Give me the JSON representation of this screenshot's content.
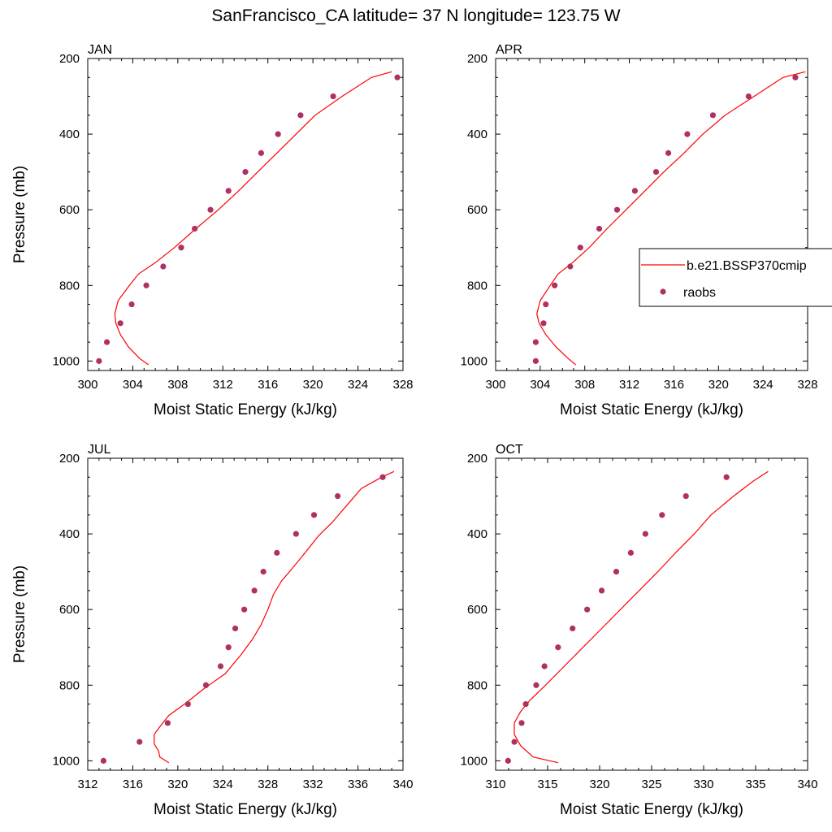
{
  "title": "SanFrancisco_CA  latitude= 37 N longitude= 123.75 W",
  "legend": {
    "line_label": "b.e21.BSSP370cmip",
    "dot_label": "raobs"
  },
  "colors": {
    "model": "#ff0000",
    "obs": "#b03060",
    "frame": "#000000"
  },
  "chart_data": [
    {
      "type": "line",
      "title": "JAN",
      "xlabel": "Moist Static Energy (kJ/kg)",
      "ylabel": "Pressure (mb)",
      "xlim": [
        300,
        328
      ],
      "ylim": [
        1025,
        200
      ],
      "xticks": [
        300,
        304,
        308,
        312,
        316,
        320,
        324,
        328
      ],
      "yticks": [
        200,
        400,
        600,
        800,
        1000
      ],
      "series": [
        {
          "name": "b.e21.BSSP370cmip",
          "kind": "line",
          "points": [
            [
              305.4,
              1010
            ],
            [
              304.6,
              993
            ],
            [
              303.6,
              962
            ],
            [
              302.9,
              930
            ],
            [
              302.5,
              900
            ],
            [
              302.4,
              875
            ],
            [
              302.7,
              840
            ],
            [
              303.7,
              800
            ],
            [
              304.5,
              770
            ],
            [
              306.0,
              740
            ],
            [
              307.7,
              700
            ],
            [
              309.6,
              650
            ],
            [
              311.6,
              600
            ],
            [
              313.4,
              550
            ],
            [
              315.1,
              500
            ],
            [
              316.8,
              450
            ],
            [
              318.5,
              400
            ],
            [
              320.2,
              350
            ],
            [
              322.6,
              300
            ],
            [
              325.2,
              250
            ],
            [
              327.0,
              235
            ]
          ]
        },
        {
          "name": "raobs",
          "kind": "scatter",
          "points": [
            [
              301.0,
              1000
            ],
            [
              301.7,
              950
            ],
            [
              302.9,
              900
            ],
            [
              303.9,
              850
            ],
            [
              305.2,
              800
            ],
            [
              306.7,
              750
            ],
            [
              308.3,
              700
            ],
            [
              309.5,
              650
            ],
            [
              310.9,
              600
            ],
            [
              312.5,
              550
            ],
            [
              314.0,
              500
            ],
            [
              315.4,
              450
            ],
            [
              316.9,
              400
            ],
            [
              318.9,
              350
            ],
            [
              321.8,
              300
            ],
            [
              327.5,
              250
            ]
          ]
        }
      ]
    },
    {
      "type": "line",
      "title": "APR",
      "xlabel": "Moist Static Energy (kJ/kg)",
      "ylabel": "",
      "xlim": [
        300,
        328
      ],
      "ylim": [
        1025,
        200
      ],
      "xticks": [
        300,
        304,
        308,
        312,
        316,
        320,
        324,
        328
      ],
      "yticks": [
        200,
        400,
        600,
        800,
        1000
      ],
      "series": [
        {
          "name": "b.e21.BSSP370cmip",
          "kind": "line",
          "points": [
            [
              307.2,
              1010
            ],
            [
              306.5,
              993
            ],
            [
              305.4,
              962
            ],
            [
              304.5,
              930
            ],
            [
              303.9,
              900
            ],
            [
              303.7,
              875
            ],
            [
              304.0,
              840
            ],
            [
              304.9,
              800
            ],
            [
              305.6,
              770
            ],
            [
              306.9,
              740
            ],
            [
              308.4,
              700
            ],
            [
              310.0,
              650
            ],
            [
              311.7,
              600
            ],
            [
              313.4,
              550
            ],
            [
              315.1,
              500
            ],
            [
              316.9,
              450
            ],
            [
              318.6,
              400
            ],
            [
              320.6,
              350
            ],
            [
              323.2,
              300
            ],
            [
              325.8,
              250
            ],
            [
              327.8,
              235
            ]
          ]
        },
        {
          "name": "raobs",
          "kind": "scatter",
          "points": [
            [
              303.6,
              1000
            ],
            [
              303.6,
              950
            ],
            [
              304.3,
              900
            ],
            [
              304.5,
              850
            ],
            [
              305.3,
              800
            ],
            [
              306.7,
              750
            ],
            [
              307.6,
              700
            ],
            [
              309.3,
              650
            ],
            [
              310.9,
              600
            ],
            [
              312.5,
              550
            ],
            [
              314.4,
              500
            ],
            [
              315.5,
              450
            ],
            [
              317.2,
              400
            ],
            [
              319.5,
              350
            ],
            [
              322.7,
              300
            ],
            [
              326.9,
              250
            ]
          ]
        }
      ]
    },
    {
      "type": "line",
      "title": "JUL",
      "xlabel": "Moist Static Energy (kJ/kg)",
      "ylabel": "Pressure (mb)",
      "xlim": [
        312,
        340
      ],
      "ylim": [
        1025,
        200
      ],
      "xticks": [
        312,
        316,
        320,
        324,
        328,
        332,
        336,
        340
      ],
      "yticks": [
        200,
        400,
        600,
        800,
        1000
      ],
      "series": [
        {
          "name": "b.e21.BSSP370cmip",
          "kind": "line",
          "points": [
            [
              319.2,
              1005
            ],
            [
              318.4,
              990
            ],
            [
              318.3,
              975
            ],
            [
              317.9,
              955
            ],
            [
              317.9,
              930
            ],
            [
              318.4,
              910
            ],
            [
              319.2,
              880
            ],
            [
              320.6,
              850
            ],
            [
              322.3,
              810
            ],
            [
              324.2,
              770
            ],
            [
              325.6,
              720
            ],
            [
              326.6,
              680
            ],
            [
              327.4,
              640
            ],
            [
              328.0,
              600
            ],
            [
              328.5,
              560
            ],
            [
              329.2,
              525
            ],
            [
              330.2,
              490
            ],
            [
              331.3,
              450
            ],
            [
              332.5,
              405
            ],
            [
              333.7,
              370
            ],
            [
              335.0,
              325
            ],
            [
              336.3,
              280
            ],
            [
              338.1,
              250
            ],
            [
              339.2,
              235
            ]
          ]
        },
        {
          "name": "raobs",
          "kind": "scatter",
          "points": [
            [
              313.4,
              1000
            ],
            [
              316.6,
              950
            ],
            [
              319.1,
              900
            ],
            [
              320.9,
              850
            ],
            [
              322.5,
              800
            ],
            [
              323.8,
              750
            ],
            [
              324.5,
              700
            ],
            [
              325.1,
              650
            ],
            [
              325.9,
              600
            ],
            [
              326.8,
              550
            ],
            [
              327.6,
              500
            ],
            [
              328.8,
              450
            ],
            [
              330.5,
              400
            ],
            [
              332.1,
              350
            ],
            [
              334.2,
              300
            ],
            [
              338.2,
              250
            ]
          ]
        }
      ]
    },
    {
      "type": "line",
      "title": "OCT",
      "xlabel": "Moist Static Energy (kJ/kg)",
      "ylabel": "",
      "xlim": [
        310,
        340
      ],
      "ylim": [
        1025,
        200
      ],
      "xticks": [
        310,
        315,
        320,
        325,
        330,
        335,
        340
      ],
      "yticks": [
        200,
        400,
        600,
        800,
        1000
      ],
      "series": [
        {
          "name": "b.e21.BSSP370cmip",
          "kind": "line",
          "points": [
            [
              316.0,
              1005
            ],
            [
              313.6,
              990
            ],
            [
              312.4,
              960
            ],
            [
              311.8,
              930
            ],
            [
              311.8,
              900
            ],
            [
              312.4,
              870
            ],
            [
              313.3,
              840
            ],
            [
              314.8,
              800
            ],
            [
              316.6,
              750
            ],
            [
              318.4,
              700
            ],
            [
              320.2,
              650
            ],
            [
              322.0,
              600
            ],
            [
              323.8,
              550
            ],
            [
              325.6,
              500
            ],
            [
              327.3,
              450
            ],
            [
              329.1,
              400
            ],
            [
              330.7,
              350
            ],
            [
              332.9,
              300
            ],
            [
              334.8,
              260
            ],
            [
              336.2,
              235
            ]
          ]
        },
        {
          "name": "raobs",
          "kind": "scatter",
          "points": [
            [
              311.2,
              1000
            ],
            [
              311.8,
              950
            ],
            [
              312.5,
              900
            ],
            [
              312.9,
              850
            ],
            [
              313.9,
              800
            ],
            [
              314.7,
              750
            ],
            [
              316.0,
              700
            ],
            [
              317.4,
              650
            ],
            [
              318.8,
              600
            ],
            [
              320.2,
              550
            ],
            [
              321.6,
              500
            ],
            [
              323.0,
              450
            ],
            [
              324.4,
              400
            ],
            [
              326.0,
              350
            ],
            [
              328.3,
              300
            ],
            [
              332.2,
              250
            ]
          ]
        }
      ]
    }
  ]
}
